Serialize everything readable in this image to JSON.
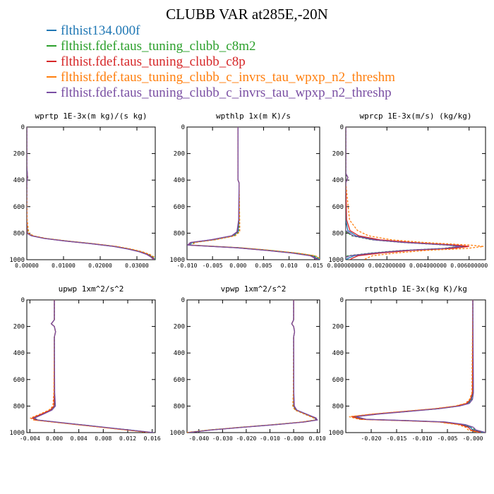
{
  "title": "CLUBB VAR at285E,-20N",
  "legend": [
    {
      "label": "flthist134.000f",
      "color": "#1f77b4"
    },
    {
      "label": "flthist.fdef.taus_tuning_clubb_c8m2",
      "color": "#2ca02c"
    },
    {
      "label": "flthist.fdef.taus_tuning_clubb_c8p",
      "color": "#d62728"
    },
    {
      "label": "flthist.fdef.taus_tuning_clubb_c_invrs_tau_wpxp_n2_threshm",
      "color": "#ff7f0e"
    },
    {
      "label": "flthist.fdef.taus_tuning_clubb_c_invrs_tau_wpxp_n2_threshp",
      "color": "#7a4fa3"
    }
  ],
  "chart_data": [
    {
      "type": "line",
      "title": "wprtp  1E-3x(m kg)/(s kg)",
      "xlim": [
        0.0,
        0.035
      ],
      "ylim": [
        0,
        1000
      ],
      "xticks": [
        0.0,
        0.01,
        0.02,
        0.03
      ],
      "xtick_labels": [
        "0.00000",
        "0.01000",
        "0.02000",
        "0.03000"
      ],
      "yticks": [
        0,
        200,
        400,
        600,
        800,
        1000
      ],
      "ytick_labels": [
        "0",
        "200",
        "400",
        "600",
        "800",
        "1000"
      ],
      "y_inverted": true,
      "base": {
        "y": [
          0,
          300,
          380,
          420,
          700,
          800,
          820,
          840,
          860,
          880,
          900,
          920,
          940,
          960,
          980,
          990,
          1000
        ],
        "x": [
          0,
          0,
          0.0002,
          0,
          0,
          0.0002,
          0.0015,
          0.005,
          0.011,
          0.018,
          0.024,
          0.028,
          0.031,
          0.033,
          0.0342,
          0.0346,
          0.0349
        ]
      },
      "offsets": [
        0,
        0.0003,
        -0.0002,
        0.0005,
        -0.0004
      ]
    },
    {
      "type": "line",
      "title": "wpthlp  1x(m K)/s",
      "xlim": [
        -0.01,
        0.016
      ],
      "ylim": [
        0,
        1000
      ],
      "xticks": [
        -0.01,
        -0.005,
        0.0,
        0.005,
        0.01,
        0.015
      ],
      "xtick_labels": [
        "-0.010",
        "-0.005",
        "0.000",
        "0.005",
        "0.010",
        "0.015"
      ],
      "yticks": [
        0,
        200,
        400,
        600,
        800,
        1000
      ],
      "ytick_labels": [
        "0",
        "200",
        "400",
        "600",
        "800",
        "1000"
      ],
      "y_inverted": true,
      "base": {
        "y": [
          0,
          400,
          420,
          700,
          790,
          820,
          850,
          870,
          890,
          910,
          930,
          950,
          970,
          990,
          1000
        ],
        "x": [
          0,
          0,
          0.0002,
          0.0002,
          0,
          -0.001,
          -0.005,
          -0.009,
          -0.0095,
          0,
          0.006,
          0.011,
          0.0145,
          0.0155,
          0.016
        ]
      },
      "offsets": [
        0,
        0.0004,
        -0.0003,
        0.0006,
        -0.0004
      ]
    },
    {
      "type": "line",
      "title": "wprcp  1E-3x(m/s) (kg/kg)",
      "xlim": [
        0.0,
        0.0068
      ],
      "ylim": [
        0,
        1000
      ],
      "xticks": [
        0.0,
        0.002,
        0.004,
        0.006
      ],
      "xtick_labels": [
        "0.000000000",
        "0.002000000",
        "0.004000000",
        "0.006000000"
      ],
      "yticks": [
        0,
        200,
        400,
        600,
        800,
        1000
      ],
      "ytick_labels": [
        "0",
        "200",
        "400",
        "600",
        "800",
        "1000"
      ],
      "y_inverted": true,
      "base": {
        "y": [
          0,
          350,
          380,
          420,
          700,
          780,
          820,
          850,
          870,
          890,
          900,
          915,
          930,
          950,
          970,
          990,
          1000
        ],
        "x": [
          0,
          0,
          0.0001,
          0,
          0,
          0.0001,
          0.0005,
          0.0015,
          0.003,
          0.0052,
          0.0058,
          0.005,
          0.003,
          0.0015,
          0.0004,
          0.0001,
          0
        ]
      },
      "offsets": [
        0,
        -0.0003,
        0.0002,
        0.0009,
        -0.0002
      ]
    },
    {
      "type": "line",
      "title": "upwp  1xm^2/s^2",
      "xlim": [
        -0.0045,
        0.0165
      ],
      "ylim": [
        0,
        1000
      ],
      "xticks": [
        -0.004,
        0.0,
        0.004,
        0.008,
        0.012,
        0.016
      ],
      "xtick_labels": [
        "-0.004",
        "0.000",
        "0.004",
        "0.008",
        "0.012",
        "0.016"
      ],
      "yticks": [
        0,
        200,
        400,
        600,
        800,
        1000
      ],
      "ytick_labels": [
        "0",
        "200",
        "400",
        "600",
        "800",
        "1000"
      ],
      "y_inverted": true,
      "base": {
        "y": [
          0,
          150,
          180,
          200,
          240,
          260,
          280,
          700,
          800,
          830,
          860,
          890,
          905,
          920,
          940,
          960,
          980,
          1000
        ],
        "x": [
          0,
          0,
          -0.0005,
          0,
          0.0002,
          0.0001,
          0,
          0,
          0,
          -0.0006,
          -0.002,
          -0.0035,
          -0.003,
          0,
          0.004,
          0.008,
          0.012,
          0.016
        ]
      },
      "offsets": [
        0,
        0.0002,
        -0.0001,
        -0.0004,
        0.0003
      ]
    },
    {
      "type": "line",
      "title": "vpwp  1xm^2/s^2",
      "xlim": [
        -0.045,
        0.011
      ],
      "ylim": [
        0,
        1000
      ],
      "xticks": [
        -0.04,
        -0.03,
        -0.02,
        -0.01,
        0.0,
        0.01
      ],
      "xtick_labels": [
        "-0.040",
        "-0.030",
        "-0.020",
        "-0.010",
        "-0.000",
        "0.010"
      ],
      "yticks": [
        0,
        200,
        400,
        600,
        800,
        1000
      ],
      "ytick_labels": [
        "0",
        "200",
        "400",
        "600",
        "800",
        "1000"
      ],
      "y_inverted": true,
      "base": {
        "y": [
          0,
          150,
          180,
          200,
          240,
          260,
          280,
          700,
          800,
          830,
          860,
          890,
          905,
          920,
          940,
          960,
          980,
          1000
        ],
        "x": [
          0,
          0,
          -0.0008,
          0,
          0.0004,
          0.0002,
          0,
          0,
          0,
          0.001,
          0.005,
          0.009,
          0.0095,
          0.004,
          -0.008,
          -0.022,
          -0.035,
          -0.045
        ]
      },
      "offsets": [
        0,
        -0.0004,
        0.0003,
        -0.0006,
        0.0005
      ]
    },
    {
      "type": "line",
      "title": "rtpthlp  1E-3x(kg K)/kg",
      "xlim": [
        -0.025,
        0.0025
      ],
      "ylim": [
        0,
        1000
      ],
      "xticks": [
        -0.02,
        -0.015,
        -0.01,
        -0.005,
        0.0
      ],
      "xtick_labels": [
        "-0.020",
        "-0.015",
        "-0.010",
        "-0.005",
        "-0.000"
      ],
      "yticks": [
        0,
        200,
        400,
        600,
        800,
        1000
      ],
      "ytick_labels": [
        "0",
        "200",
        "400",
        "600",
        "800",
        "1000"
      ],
      "y_inverted": true,
      "base": {
        "y": [
          0,
          700,
          750,
          780,
          800,
          820,
          840,
          860,
          880,
          900,
          910,
          920,
          940,
          960,
          980,
          1000
        ],
        "x": [
          0,
          0,
          -0.0003,
          -0.001,
          -0.003,
          -0.007,
          -0.013,
          -0.019,
          -0.0235,
          -0.0215,
          -0.013,
          -0.006,
          -0.002,
          -0.0005,
          0,
          0.002
        ]
      },
      "offsets": [
        0,
        0.0004,
        -0.0004,
        -0.0009,
        0.0006
      ]
    }
  ]
}
